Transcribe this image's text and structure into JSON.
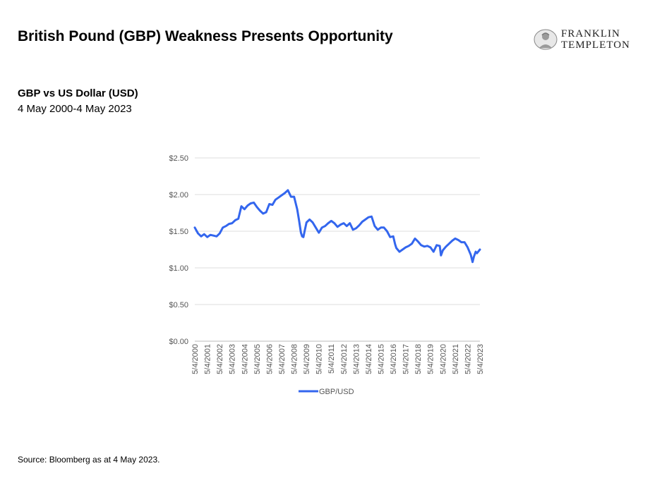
{
  "header": {
    "headline": "British Pound (GBP) Weakness Presents Opportunity",
    "logo_line1": "FRANKLIN",
    "logo_line2": "TEMPLETON"
  },
  "source_note": "Source: Bloomberg as at 4 May 2023.",
  "colors": {
    "series": "#3366ee",
    "grid": "#dddddd",
    "axis_text": "#555555"
  },
  "chart_data": {
    "type": "line",
    "title": "GBP vs US Dollar (USD)",
    "subtitle": "4 May 2000-4 May 2023",
    "xlabel": "",
    "ylabel": "",
    "ylim": [
      0,
      2.5
    ],
    "y_ticks": [
      {
        "value": 0,
        "label": "$0.00"
      },
      {
        "value": 0.5,
        "label": "$0.50"
      },
      {
        "value": 1.0,
        "label": "$1.00"
      },
      {
        "value": 1.5,
        "label": "$1.50"
      },
      {
        "value": 2.0,
        "label": "$2.00"
      },
      {
        "value": 2.5,
        "label": "$2.50"
      }
    ],
    "x_tick_labels": [
      "5/4/2000",
      "5/4/2001",
      "5/4/2002",
      "5/4/2003",
      "5/4/2004",
      "5/4/2005",
      "5/4/2006",
      "5/4/2007",
      "5/4/2008",
      "5/4/2009",
      "5/4/2010",
      "5/4/2011",
      "5/4/2012",
      "5/4/2013",
      "5/4/2014",
      "5/4/2015",
      "5/4/2016",
      "5/4/2017",
      "5/4/2018",
      "5/4/2019",
      "5/4/2020",
      "5/4/2021",
      "5/4/2022",
      "5/4/2023"
    ],
    "grid": true,
    "legend_position": "bottom",
    "series": [
      {
        "name": "GBP/USD",
        "x": [
          2000.34,
          2000.6,
          2000.85,
          2001.1,
          2001.35,
          2001.6,
          2001.85,
          2002.1,
          2002.35,
          2002.6,
          2002.85,
          2003.1,
          2003.35,
          2003.6,
          2003.85,
          2004.1,
          2004.35,
          2004.6,
          2004.85,
          2005.1,
          2005.35,
          2005.6,
          2005.85,
          2006.1,
          2006.35,
          2006.6,
          2006.85,
          2007.1,
          2007.35,
          2007.6,
          2007.85,
          2008.1,
          2008.35,
          2008.6,
          2008.75,
          2008.9,
          2009.0,
          2009.1,
          2009.2,
          2009.35,
          2009.6,
          2009.85,
          2010.1,
          2010.35,
          2010.6,
          2010.85,
          2011.1,
          2011.35,
          2011.6,
          2011.85,
          2012.1,
          2012.35,
          2012.6,
          2012.85,
          2013.1,
          2013.35,
          2013.6,
          2013.85,
          2014.1,
          2014.35,
          2014.6,
          2014.85,
          2015.1,
          2015.35,
          2015.6,
          2015.85,
          2016.1,
          2016.35,
          2016.5,
          2016.6,
          2016.85,
          2017.1,
          2017.35,
          2017.6,
          2017.85,
          2018.1,
          2018.35,
          2018.6,
          2018.85,
          2019.1,
          2019.35,
          2019.6,
          2019.85,
          2020.1,
          2020.2,
          2020.35,
          2020.6,
          2020.85,
          2021.1,
          2021.35,
          2021.6,
          2021.85,
          2022.1,
          2022.35,
          2022.6,
          2022.75,
          2022.85,
          2023.0,
          2023.1,
          2023.34
        ],
        "values": [
          1.55,
          1.47,
          1.43,
          1.46,
          1.42,
          1.45,
          1.44,
          1.43,
          1.47,
          1.55,
          1.57,
          1.6,
          1.61,
          1.65,
          1.67,
          1.84,
          1.8,
          1.85,
          1.88,
          1.89,
          1.83,
          1.78,
          1.74,
          1.76,
          1.87,
          1.86,
          1.93,
          1.96,
          1.99,
          2.02,
          2.06,
          1.97,
          1.97,
          1.8,
          1.65,
          1.48,
          1.43,
          1.42,
          1.5,
          1.62,
          1.66,
          1.62,
          1.55,
          1.48,
          1.55,
          1.57,
          1.61,
          1.64,
          1.61,
          1.56,
          1.59,
          1.61,
          1.57,
          1.61,
          1.52,
          1.54,
          1.58,
          1.63,
          1.66,
          1.69,
          1.7,
          1.57,
          1.52,
          1.55,
          1.55,
          1.5,
          1.42,
          1.43,
          1.32,
          1.27,
          1.22,
          1.25,
          1.28,
          1.3,
          1.33,
          1.4,
          1.36,
          1.31,
          1.29,
          1.3,
          1.28,
          1.22,
          1.31,
          1.3,
          1.17,
          1.24,
          1.29,
          1.33,
          1.37,
          1.4,
          1.38,
          1.35,
          1.35,
          1.28,
          1.18,
          1.08,
          1.15,
          1.22,
          1.2,
          1.25
        ]
      }
    ]
  }
}
